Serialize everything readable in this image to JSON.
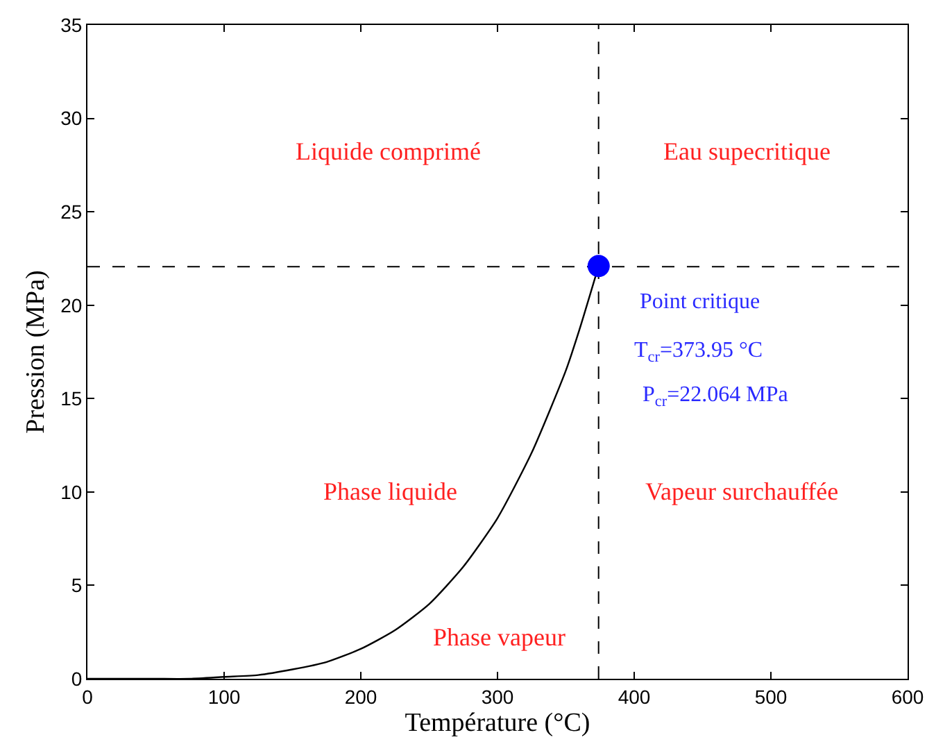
{
  "chart_data": {
    "type": "line",
    "xlabel": "Température (°C)",
    "ylabel": "Pression (MPa)",
    "xlim": [
      0,
      600
    ],
    "ylim": [
      0,
      35
    ],
    "xticks": [
      0,
      100,
      200,
      300,
      400,
      500,
      600
    ],
    "yticks": [
      0,
      5,
      10,
      15,
      20,
      25,
      30,
      35
    ],
    "grid": false,
    "series": [
      {
        "color": "#000000",
        "x": [
          0,
          25,
          50,
          75,
          100,
          125,
          150,
          175,
          200,
          225,
          250,
          275,
          300,
          325,
          350,
          360,
          374
        ],
        "values": [
          0,
          0,
          0,
          0,
          0.1,
          0.2,
          0.5,
          0.9,
          1.6,
          2.6,
          4,
          6,
          8.6,
          12.1,
          16.5,
          18.7,
          22.1
        ]
      },
      {
        "type": "scatter",
        "color": "#0000ff",
        "x": [
          374
        ],
        "values": [
          22.1
        ]
      }
    ],
    "ref_lines": [
      {
        "axis": "x",
        "value": 373.95,
        "color": "#000000",
        "line_style": "dashed"
      },
      {
        "axis": "y",
        "value": 22.064,
        "color": "#000000",
        "line_style": "dashed"
      }
    ],
    "annotations": [
      "Liquide comprimé",
      "Eau supecritique",
      "Phase liquide",
      "Vapeur surchauffée",
      "Phase vapeur",
      "Point critique",
      "T$_{cr}$=373.95 °C",
      "P$_{cr}$=22.064 MPa"
    ]
  }
}
